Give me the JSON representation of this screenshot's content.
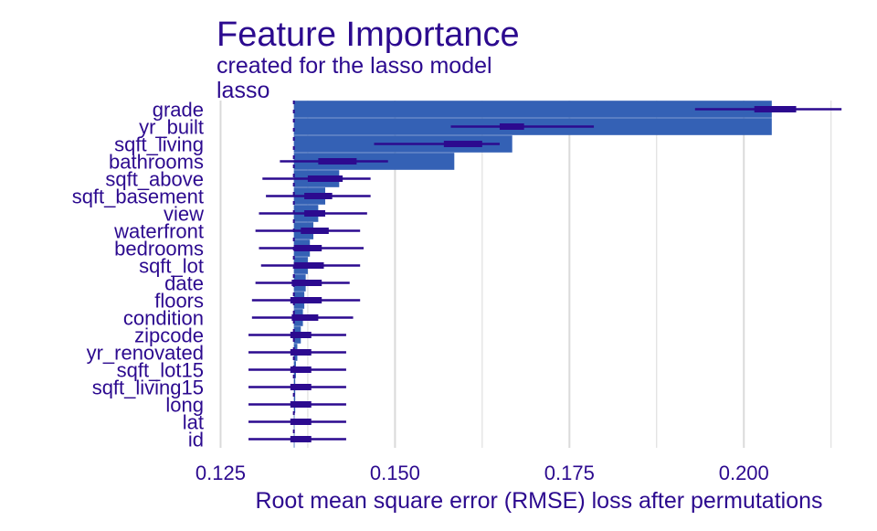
{
  "chart_data": {
    "type": "bar",
    "title": "Feature Importance",
    "subtitle": "created for the lasso model",
    "panel_label": "lasso",
    "xlabel": "Root mean square error (RMSE) loss after permutations",
    "ylabel": "",
    "xlim": [
      0.1235,
      0.2145
    ],
    "x_ticks": [
      0.125,
      0.15,
      0.175,
      0.2
    ],
    "x_tick_labels": [
      "0.125",
      "0.150",
      "0.175",
      "0.200"
    ],
    "baseline_rmse": 0.1355,
    "grid": "vertical",
    "legend": "none",
    "colors": {
      "bar": "#3461b5",
      "interval": "#2c0a8f",
      "text": "#2c0a8f",
      "grid": "#dadada",
      "baseline": "#2c0a8f"
    },
    "categories": [
      "grade",
      "yr_built",
      "sqft_living",
      "bathrooms",
      "sqft_above",
      "sqft_basement",
      "view",
      "waterfront",
      "bedrooms",
      "sqft_lot",
      "date",
      "floors",
      "condition",
      "zipcode",
      "yr_renovated",
      "sqft_lot15",
      "sqft_living15",
      "long",
      "lat",
      "id"
    ],
    "values": [
      0.204,
      0.204,
      0.1668,
      0.1585,
      0.142,
      0.14,
      0.139,
      0.1383,
      0.1378,
      0.1375,
      0.1372,
      0.137,
      0.1368,
      0.1365,
      0.136,
      0.1358,
      0.1357,
      0.1357,
      0.1356,
      0.1356
    ],
    "whisker_low": [
      0.193,
      0.158,
      0.147,
      0.1335,
      0.131,
      0.1315,
      0.1305,
      0.13,
      0.1305,
      0.1308,
      0.13,
      0.1295,
      0.1295,
      0.129,
      0.129,
      0.129,
      0.129,
      0.129,
      0.129,
      0.129
    ],
    "box_low": [
      0.2015,
      0.165,
      0.157,
      0.139,
      0.1375,
      0.137,
      0.137,
      0.1365,
      0.1355,
      0.1355,
      0.1352,
      0.135,
      0.1352,
      0.135,
      0.135,
      0.135,
      0.135,
      0.135,
      0.135,
      0.135
    ],
    "box_high": [
      0.2075,
      0.1685,
      0.1625,
      0.1445,
      0.1425,
      0.141,
      0.14,
      0.1405,
      0.1395,
      0.1398,
      0.1395,
      0.1395,
      0.139,
      0.138,
      0.138,
      0.138,
      0.138,
      0.138,
      0.138,
      0.138
    ],
    "whisker_high": [
      0.214,
      0.1785,
      0.165,
      0.149,
      0.1465,
      0.1465,
      0.146,
      0.145,
      0.1455,
      0.145,
      0.1435,
      0.145,
      0.144,
      0.143,
      0.143,
      0.143,
      0.143,
      0.143,
      0.143,
      0.143
    ]
  }
}
